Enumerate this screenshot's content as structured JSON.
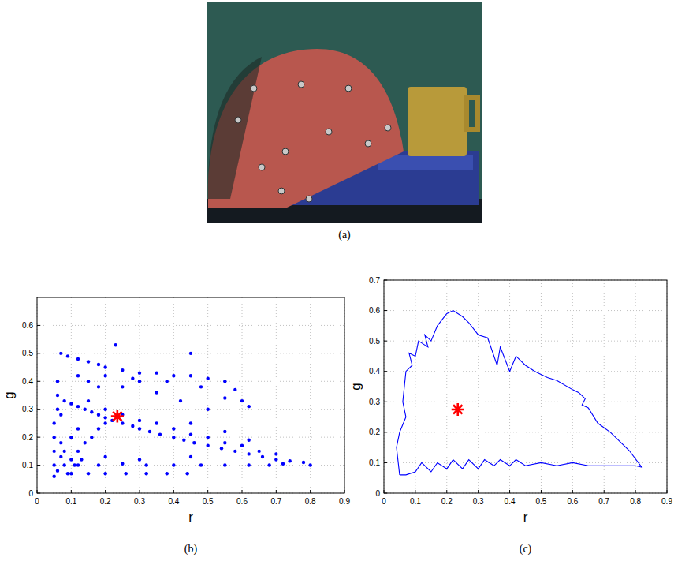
{
  "image": {
    "caption": "(a)"
  },
  "chart_data": [
    {
      "type": "scatter",
      "caption": "(b)",
      "x_label": "r",
      "y_label": "g",
      "xlim": [
        0,
        0.9
      ],
      "ylim": [
        0,
        0.7
      ],
      "xticks": [
        0,
        0.1,
        0.2,
        0.3,
        0.4,
        0.5,
        0.6,
        0.7,
        0.8,
        0.9
      ],
      "yticks": [
        0,
        0.1,
        0.2,
        0.3,
        0.4,
        0.5,
        0.6
      ],
      "grid": true,
      "series": [
        {
          "type": "scatter",
          "color": "#0000ff",
          "marker": "dot",
          "x": [
            0.08,
            0.1,
            0.12,
            0.14,
            0.16,
            0.18,
            0.2,
            0.22,
            0.25,
            0.28,
            0.3,
            0.33,
            0.36,
            0.4,
            0.43,
            0.46,
            0.5,
            0.54,
            0.58,
            0.62,
            0.66,
            0.7,
            0.74,
            0.78,
            0.8,
            0.3,
            0.4,
            0.5,
            0.6,
            0.7,
            0.35,
            0.45,
            0.55,
            0.65,
            0.25,
            0.2,
            0.15,
            0.45,
            0.55,
            0.62,
            0.07,
            0.09,
            0.12,
            0.15,
            0.18,
            0.2,
            0.25,
            0.3,
            0.35,
            0.4,
            0.45,
            0.5,
            0.55,
            0.58,
            0.6,
            0.62,
            0.12,
            0.2,
            0.3,
            0.45,
            0.15,
            0.25,
            0.35,
            0.42,
            0.5,
            0.55,
            0.48,
            0.38,
            0.28,
            0.18,
            0.05,
            0.05,
            0.05,
            0.05,
            0.05,
            0.06,
            0.06,
            0.06,
            0.07,
            0.07,
            0.06,
            0.08,
            0.1,
            0.07,
            0.09,
            0.12,
            0.14,
            0.16,
            0.18,
            0.2,
            0.11,
            0.13,
            0.08,
            0.1,
            0.12,
            0.12,
            0.18,
            0.25,
            0.32,
            0.4,
            0.48,
            0.55,
            0.62,
            0.68,
            0.72,
            0.1,
            0.15,
            0.2,
            0.26,
            0.32,
            0.38,
            0.44,
            0.3,
            0.45,
            0.2,
            0.23
          ],
          "values": [
            0.33,
            0.32,
            0.31,
            0.3,
            0.29,
            0.28,
            0.27,
            0.26,
            0.25,
            0.24,
            0.23,
            0.22,
            0.21,
            0.2,
            0.19,
            0.18,
            0.17,
            0.16,
            0.15,
            0.14,
            0.13,
            0.12,
            0.115,
            0.11,
            0.1,
            0.26,
            0.23,
            0.2,
            0.17,
            0.14,
            0.25,
            0.21,
            0.18,
            0.15,
            0.28,
            0.3,
            0.33,
            0.25,
            0.22,
            0.19,
            0.5,
            0.49,
            0.48,
            0.47,
            0.46,
            0.45,
            0.44,
            0.43,
            0.43,
            0.42,
            0.42,
            0.41,
            0.4,
            0.37,
            0.33,
            0.31,
            0.42,
            0.42,
            0.4,
            0.5,
            0.4,
            0.38,
            0.36,
            0.33,
            0.3,
            0.34,
            0.38,
            0.4,
            0.41,
            0.38,
            0.06,
            0.1,
            0.15,
            0.2,
            0.25,
            0.3,
            0.35,
            0.4,
            0.28,
            0.18,
            0.08,
            0.1,
            0.12,
            0.13,
            0.07,
            0.15,
            0.18,
            0.2,
            0.23,
            0.25,
            0.1,
            0.12,
            0.15,
            0.2,
            0.23,
            0.1,
            0.1,
            0.105,
            0.1,
            0.1,
            0.1,
            0.1,
            0.1,
            0.1,
            0.105,
            0.07,
            0.07,
            0.07,
            0.07,
            0.07,
            0.07,
            0.07,
            0.12,
            0.13,
            0.13,
            0.53
          ]
        },
        {
          "type": "scatter",
          "color": "#ff0000",
          "marker": "star",
          "x": [
            0.235
          ],
          "values": [
            0.275
          ]
        }
      ]
    },
    {
      "type": "line",
      "caption": "(c)",
      "x_label": "r",
      "y_label": "g",
      "xlim": [
        0,
        0.9
      ],
      "ylim": [
        0,
        0.7
      ],
      "xticks": [
        0,
        0.1,
        0.2,
        0.3,
        0.4,
        0.5,
        0.6,
        0.7,
        0.8,
        0.9
      ],
      "yticks": [
        0,
        0.1,
        0.2,
        0.3,
        0.4,
        0.5,
        0.6,
        0.7
      ],
      "grid": true,
      "series": [
        {
          "type": "line",
          "color": "#0000ff",
          "line_style": "solid",
          "x": [
            0.05,
            0.07,
            0.1,
            0.12,
            0.15,
            0.17,
            0.2,
            0.22,
            0.25,
            0.27,
            0.3,
            0.32,
            0.35,
            0.37,
            0.4,
            0.42,
            0.45,
            0.5,
            0.55,
            0.6,
            0.65,
            0.7,
            0.75,
            0.8,
            0.82,
            0.78,
            0.72,
            0.68,
            0.65,
            0.63,
            0.64,
            0.62,
            0.6,
            0.55,
            0.52,
            0.48,
            0.45,
            0.42,
            0.4,
            0.37,
            0.36,
            0.33,
            0.3,
            0.27,
            0.25,
            0.22,
            0.2,
            0.17,
            0.15,
            0.13,
            0.14,
            0.11,
            0.1,
            0.08,
            0.09,
            0.07,
            0.06,
            0.07,
            0.05,
            0.04,
            0.05
          ],
          "values": [
            0.06,
            0.06,
            0.07,
            0.1,
            0.07,
            0.1,
            0.08,
            0.11,
            0.08,
            0.11,
            0.08,
            0.11,
            0.09,
            0.11,
            0.09,
            0.11,
            0.09,
            0.1,
            0.09,
            0.1,
            0.09,
            0.09,
            0.09,
            0.09,
            0.085,
            0.14,
            0.2,
            0.23,
            0.28,
            0.29,
            0.31,
            0.33,
            0.34,
            0.37,
            0.38,
            0.4,
            0.42,
            0.45,
            0.4,
            0.48,
            0.42,
            0.51,
            0.52,
            0.56,
            0.58,
            0.6,
            0.59,
            0.55,
            0.5,
            0.52,
            0.48,
            0.5,
            0.45,
            0.46,
            0.42,
            0.4,
            0.3,
            0.25,
            0.2,
            0.15,
            0.06
          ]
        },
        {
          "type": "scatter",
          "color": "#ff0000",
          "marker": "star",
          "x": [
            0.235
          ],
          "values": [
            0.275
          ]
        }
      ]
    }
  ]
}
